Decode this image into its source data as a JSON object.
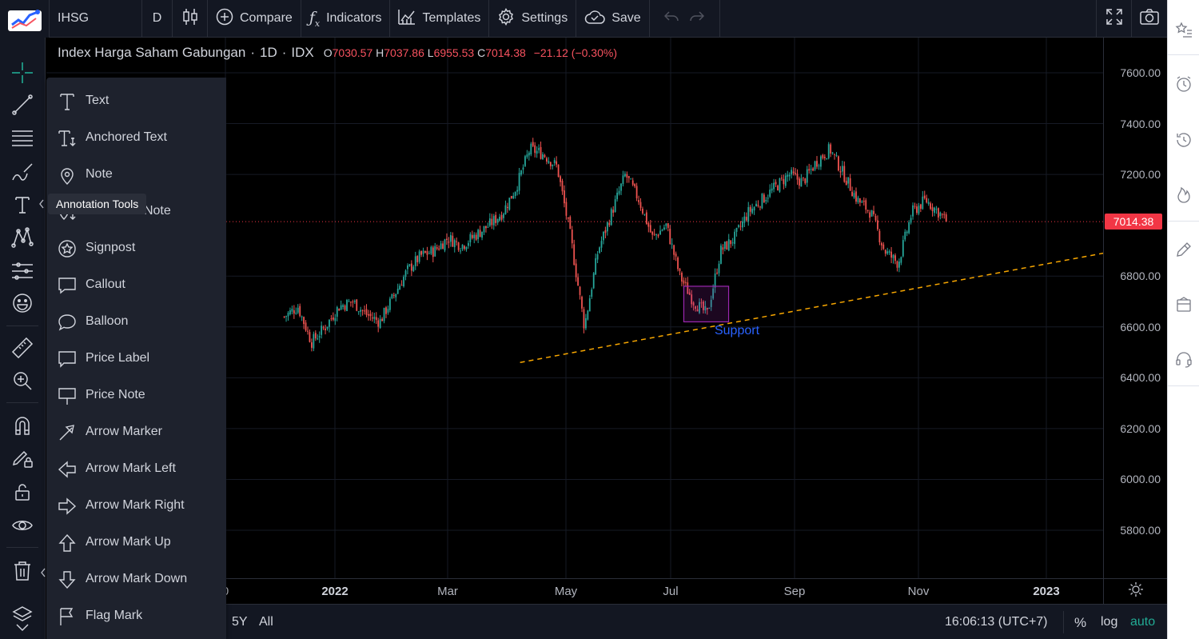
{
  "toolbar": {
    "symbol": "IHSG",
    "interval": "D",
    "compare_label": "Compare",
    "indicators_label": "Indicators",
    "templates_label": "Templates",
    "settings_label": "Settings",
    "save_label": "Save"
  },
  "legend": {
    "name": "Index Harga Saham Gabungan",
    "interval": "1D",
    "exchange": "IDX",
    "open_key": "O",
    "open": "7030.57",
    "high_key": "H",
    "high": "7037.86",
    "low_key": "L",
    "low": "6955.53",
    "close_key": "C",
    "close": "7014.38",
    "change": "−21.12 (−0.30%)"
  },
  "price_axis": {
    "labels": [
      "7600.00",
      "7400.00",
      "7200.00",
      "6800.00",
      "6600.00",
      "6400.00",
      "6200.00",
      "6000.00",
      "5800.00"
    ],
    "current_price": "7014.38"
  },
  "time_axis": {
    "labels": [
      {
        "text": "0",
        "major": false
      },
      {
        "text": "2022",
        "major": true
      },
      {
        "text": "Mar",
        "major": false
      },
      {
        "text": "May",
        "major": false
      },
      {
        "text": "Jul",
        "major": false
      },
      {
        "text": "Sep",
        "major": false
      },
      {
        "text": "Nov",
        "major": false
      },
      {
        "text": "2023",
        "major": true
      }
    ]
  },
  "chart_data": {
    "type": "candlestick",
    "symbol": "IHSG",
    "ylim": [
      5700,
      7700
    ],
    "y_ticks": [
      5800,
      6000,
      6200,
      6400,
      6600,
      6800,
      7200,
      7400,
      7600
    ],
    "last_price": 7014.38,
    "close_path": [
      [
        "2021-12-06",
        6640
      ],
      [
        "2021-12-13",
        6680
      ],
      [
        "2021-12-20",
        6540
      ],
      [
        "2021-12-27",
        6600
      ],
      [
        "2022-01-03",
        6680
      ],
      [
        "2022-01-10",
        6700
      ],
      [
        "2022-01-17",
        6650
      ],
      [
        "2022-01-24",
        6620
      ],
      [
        "2022-01-31",
        6720
      ],
      [
        "2022-02-07",
        6820
      ],
      [
        "2022-02-14",
        6880
      ],
      [
        "2022-02-21",
        6900
      ],
      [
        "2022-02-28",
        6950
      ],
      [
        "2022-03-07",
        6920
      ],
      [
        "2022-03-14",
        6960
      ],
      [
        "2022-03-21",
        7000
      ],
      [
        "2022-03-28",
        7050
      ],
      [
        "2022-04-04",
        7150
      ],
      [
        "2022-04-11",
        7300
      ],
      [
        "2022-04-18",
        7280
      ],
      [
        "2022-04-25",
        7230
      ],
      [
        "2022-05-02",
        6950
      ],
      [
        "2022-05-09",
        6600
      ],
      [
        "2022-05-16",
        6900
      ],
      [
        "2022-05-23",
        7050
      ],
      [
        "2022-05-30",
        7200
      ],
      [
        "2022-06-06",
        7100
      ],
      [
        "2022-06-13",
        6950
      ],
      [
        "2022-06-20",
        7000
      ],
      [
        "2022-06-27",
        6800
      ],
      [
        "2022-07-04",
        6700
      ],
      [
        "2022-07-11",
        6650
      ],
      [
        "2022-07-18",
        6900
      ],
      [
        "2022-07-25",
        6950
      ],
      [
        "2022-08-01",
        7050
      ],
      [
        "2022-08-08",
        7100
      ],
      [
        "2022-08-15",
        7150
      ],
      [
        "2022-08-22",
        7200
      ],
      [
        "2022-08-29",
        7170
      ],
      [
        "2022-09-05",
        7250
      ],
      [
        "2022-09-12",
        7300
      ],
      [
        "2022-09-19",
        7200
      ],
      [
        "2022-09-26",
        7100
      ],
      [
        "2022-10-03",
        7050
      ],
      [
        "2022-10-10",
        6900
      ],
      [
        "2022-10-17",
        6850
      ],
      [
        "2022-10-24",
        7050
      ],
      [
        "2022-10-31",
        7100
      ],
      [
        "2022-11-07",
        7050
      ],
      [
        "2022-11-11",
        7014
      ]
    ],
    "annotations": [
      {
        "type": "trendline",
        "label": "Support",
        "from": [
          "2022-04-06",
          6460
        ],
        "to": [
          "2023-02-20",
          6920
        ]
      },
      {
        "type": "rectangle",
        "from": [
          "2022-06-29",
          6760
        ],
        "to": [
          "2022-07-22",
          6620
        ]
      }
    ],
    "colors": {
      "up": "#26a69a",
      "down": "#ef5350",
      "trendline": "#f7a600",
      "rectangle": "#9c27b0",
      "support_text": "#2962ff"
    }
  },
  "menu": {
    "items": [
      {
        "label": "Text",
        "icon": "text-icon"
      },
      {
        "label": "Anchored Text",
        "icon": "anchored-text-icon"
      },
      {
        "label": "Note",
        "icon": "note-icon"
      },
      {
        "label": "Anchored Note",
        "icon": "anchored-note-icon"
      },
      {
        "label": "Signpost",
        "icon": "signpost-icon"
      },
      {
        "label": "Callout",
        "icon": "callout-icon"
      },
      {
        "label": "Balloon",
        "icon": "balloon-icon"
      },
      {
        "label": "Price Label",
        "icon": "price-label-icon"
      },
      {
        "label": "Price Note",
        "icon": "price-note-icon"
      },
      {
        "label": "Arrow Marker",
        "icon": "arrow-marker-icon"
      },
      {
        "label": "Arrow Mark Left",
        "icon": "arrow-mark-left-icon"
      },
      {
        "label": "Arrow Mark Right",
        "icon": "arrow-mark-right-icon"
      },
      {
        "label": "Arrow Mark Up",
        "icon": "arrow-mark-up-icon"
      },
      {
        "label": "Arrow Mark Down",
        "icon": "arrow-mark-down-icon"
      },
      {
        "label": "Flag Mark",
        "icon": "flag-mark-icon"
      }
    ]
  },
  "tooltip": "Annotation Tools",
  "bottom_bar": {
    "ranges": [
      "5Y",
      "All"
    ],
    "time": "16:06:13 (UTC+7)",
    "percent": "%",
    "log": "log",
    "auto": "auto"
  }
}
